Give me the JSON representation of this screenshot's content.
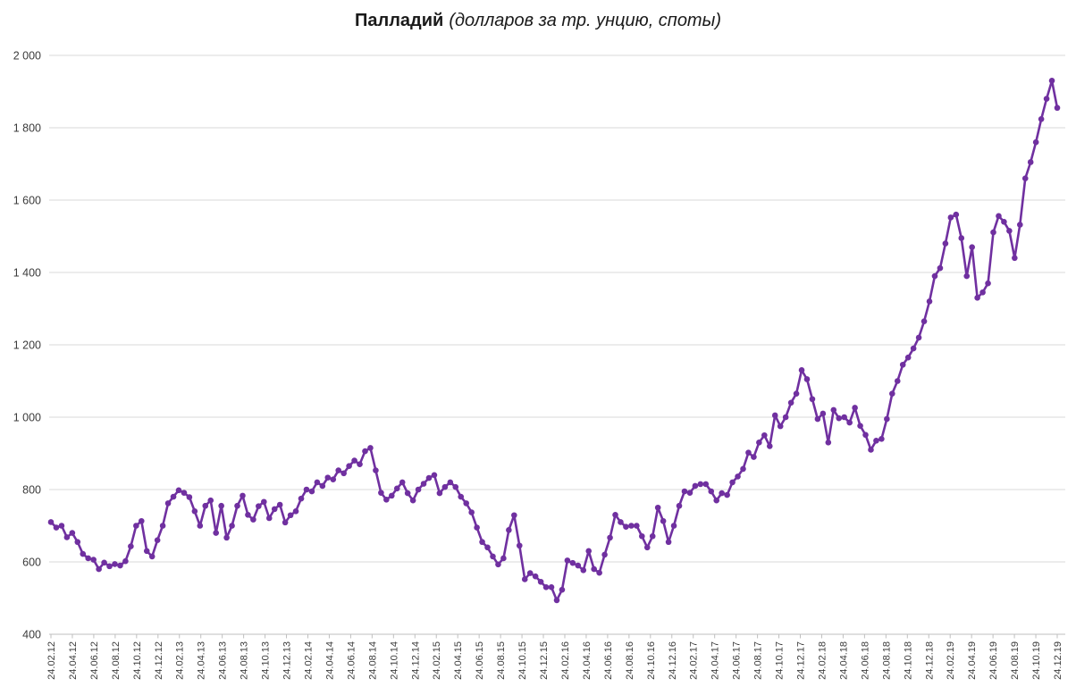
{
  "title": {
    "main": "Палладий",
    "subtitle": "(долларов за тр. унцию, споты)"
  },
  "chart_data": {
    "type": "line",
    "title": "Палладий (долларов за тр. унцию, споты)",
    "commodity": "Палладий",
    "units": "долларов за тр. унцию, споты",
    "legend_position": "none",
    "grid": "horizontal-only",
    "marker": "circle",
    "points_per_month": 2,
    "first_point_label": "24.02.12",
    "last_point_label": "24.12.19",
    "ylim": [
      400,
      2000
    ],
    "y_ticks": [
      400,
      600,
      800,
      1000,
      1200,
      1400,
      1600,
      1800,
      2000
    ],
    "y_tick_labels": [
      "400",
      "600",
      "800",
      "1 000",
      "1 200",
      "1 400",
      "1 600",
      "1 800",
      "2 000"
    ],
    "x_tick_labels": [
      "24.02.12",
      "24.04.12",
      "24.06.12",
      "24.08.12",
      "24.10.12",
      "24.12.12",
      "24.02.13",
      "24.04.13",
      "24.06.13",
      "24.08.13",
      "24.10.13",
      "24.12.13",
      "24.02.14",
      "24.04.14",
      "24.06.14",
      "24.08.14",
      "24.10.14",
      "24.12.14",
      "24.02.15",
      "24.04.15",
      "24.06.15",
      "24.08.15",
      "24.10.15",
      "24.12.15",
      "24.02.16",
      "24.04.16",
      "24.06.16",
      "24.08.16",
      "24.10.16",
      "24.12.16",
      "24.02.17",
      "24.04.17",
      "24.06.17",
      "24.08.17",
      "24.10.17",
      "24.12.17",
      "24.02.18",
      "24.04.18",
      "24.06.18",
      "24.08.18",
      "24.10.18",
      "24.12.18",
      "24.02.19",
      "24.04.19",
      "24.06.19",
      "24.08.19",
      "24.10.19",
      "24.12.19"
    ],
    "values": [
      710,
      695,
      700,
      668,
      680,
      655,
      622,
      610,
      606,
      580,
      598,
      588,
      594,
      590,
      602,
      643,
      700,
      713,
      630,
      615,
      660,
      700,
      762,
      780,
      798,
      791,
      779,
      740,
      700,
      755,
      770,
      680,
      755,
      667,
      700,
      755,
      783,
      730,
      717,
      754,
      766,
      721,
      746,
      758,
      709,
      729,
      740,
      775,
      800,
      795,
      820,
      810,
      833,
      828,
      853,
      845,
      865,
      880,
      870,
      906,
      915,
      853,
      791,
      772,
      783,
      803,
      820,
      790,
      770,
      800,
      816,
      832,
      840,
      790,
      807,
      820,
      807,
      780,
      762,
      737,
      695,
      655,
      640,
      615,
      593,
      610,
      688,
      729,
      645,
      552,
      569,
      560,
      545,
      530,
      530,
      494,
      523,
      604,
      597,
      590,
      577,
      630,
      580,
      570,
      620,
      667,
      730,
      710,
      697,
      700,
      700,
      671,
      640,
      671,
      750,
      713,
      655,
      700,
      755,
      795,
      791,
      810,
      815,
      815,
      795,
      770,
      790,
      785,
      820,
      836,
      857,
      902,
      890,
      930,
      950,
      920,
      1005,
      975,
      1000,
      1040,
      1065,
      1130,
      1105,
      1050,
      995,
      1010,
      930,
      1020,
      997,
      1000,
      985,
      1026,
      976,
      951,
      910,
      935,
      940,
      995,
      1065,
      1100,
      1145,
      1165,
      1190,
      1220,
      1265,
      1320,
      1390,
      1412,
      1480,
      1552,
      1560,
      1495,
      1390,
      1470,
      1330,
      1345,
      1370,
      1511,
      1556,
      1540,
      1515,
      1440,
      1532,
      1660,
      1705,
      1760,
      1824,
      1880,
      1930,
      1855
    ],
    "style": {
      "line_color": "#7030A0",
      "marker_color": "#7030A0",
      "gridline_color": "#D9D9D9",
      "axis_color": "#BFBFBF",
      "tick_label_color": "#3B3B3B",
      "title_color": "#1A1A1A",
      "background": "#FFFFFF"
    }
  }
}
